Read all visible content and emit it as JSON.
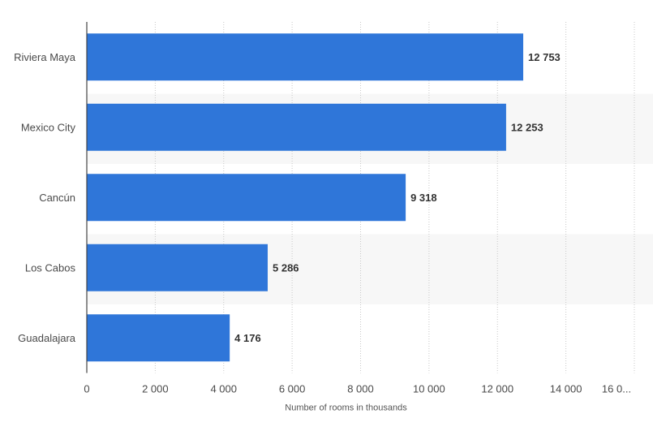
{
  "chart_data": {
    "type": "bar",
    "orientation": "horizontal",
    "categories": [
      "Riviera Maya",
      "Mexico City",
      "Cancún",
      "Los Cabos",
      "Guadalajara"
    ],
    "values": [
      12753,
      12253,
      9318,
      5286,
      4176
    ],
    "value_labels": [
      "12 753",
      "12 253",
      "9 318",
      "5 286",
      "4 176"
    ],
    "xlabel": "Number of rooms in thousands",
    "xlim": [
      0,
      16000
    ],
    "x_ticks": [
      0,
      2000,
      4000,
      6000,
      8000,
      10000,
      12000,
      14000,
      16000
    ],
    "x_tick_labels": [
      "0",
      "2 000",
      "4 000",
      "6 000",
      "8 000",
      "10 000",
      "12 000",
      "14 000",
      "16 0..."
    ],
    "grid": true,
    "colors": {
      "bar": "#2f76d9",
      "band": "#f7f7f7",
      "grid": "#c8c8c8",
      "axis": "#444444"
    }
  }
}
